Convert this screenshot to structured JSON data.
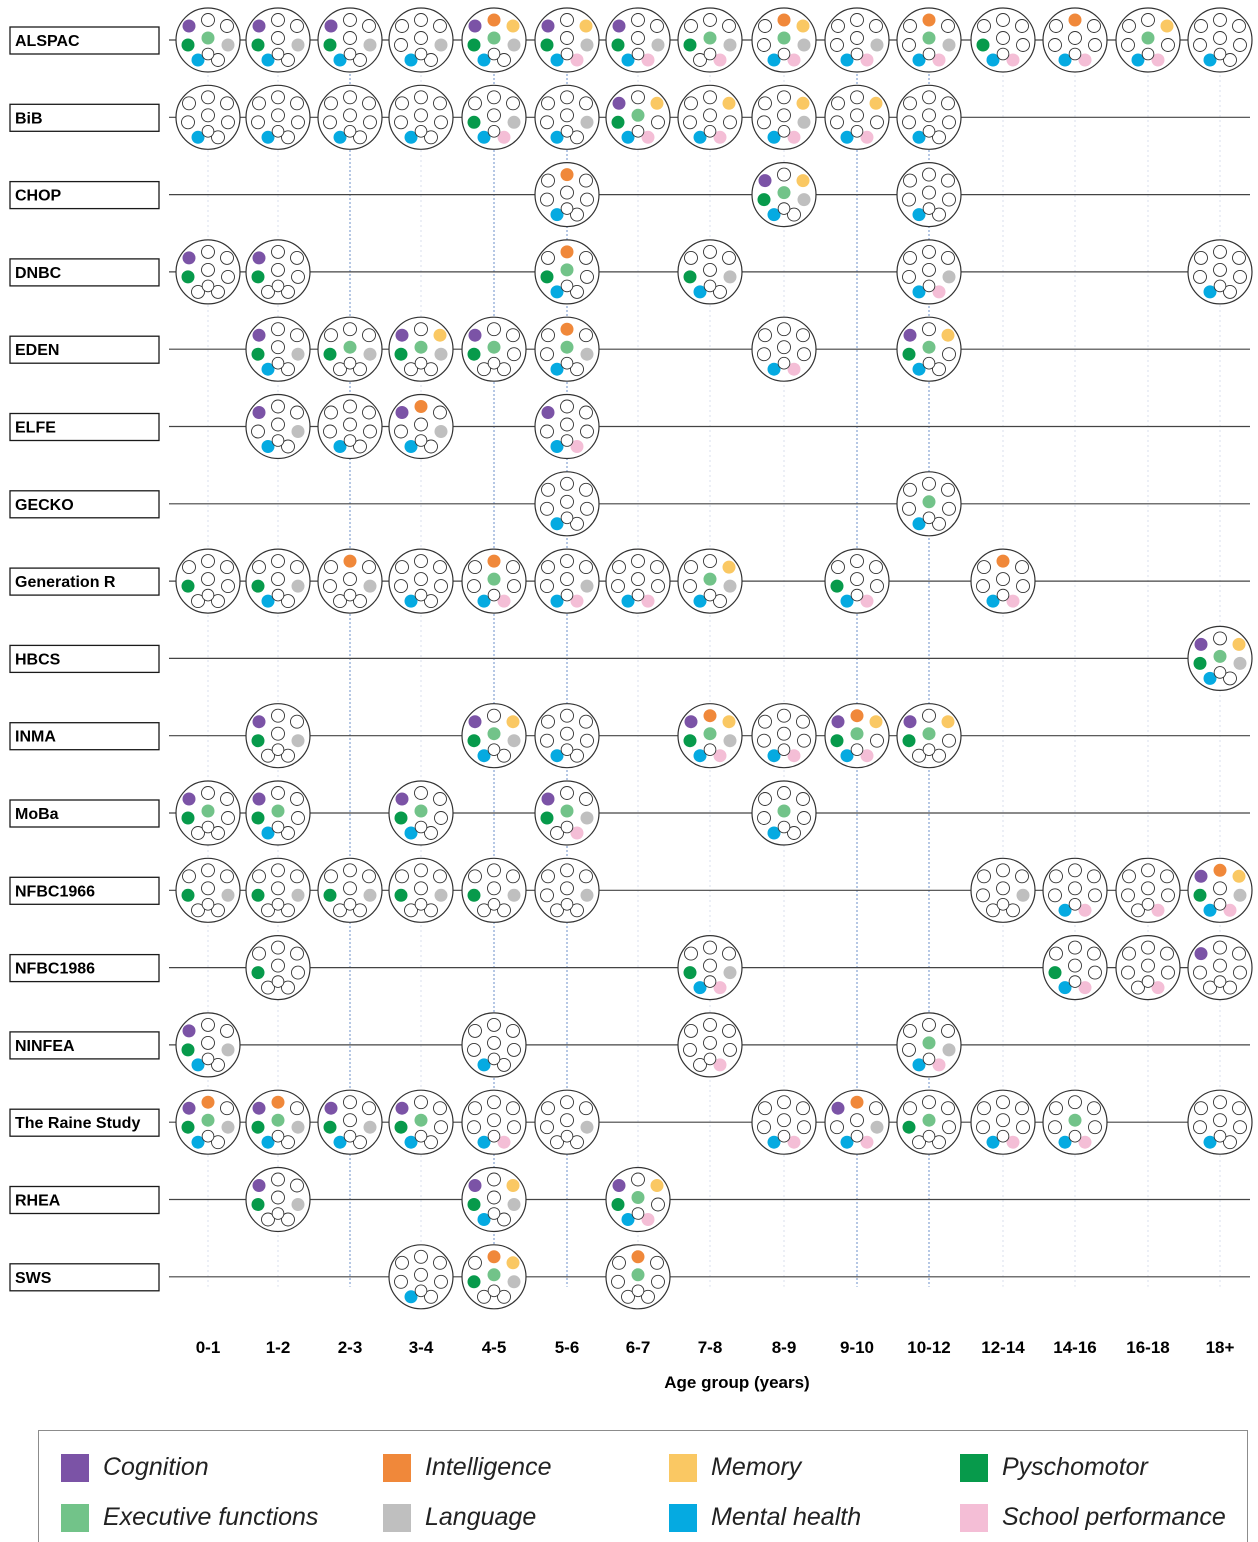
{
  "chart_data": {
    "type": "dot-matrix timeline",
    "xlabel": "Age group (years)",
    "age_groups": [
      "0-1",
      "1-2",
      "2-3",
      "3-4",
      "4-5",
      "5-6",
      "6-7",
      "7-8",
      "8-9",
      "9-10",
      "10-12",
      "12-14",
      "14-16",
      "16-18",
      "18+"
    ],
    "domains": [
      {
        "key": "cog",
        "label": "Cognition",
        "color": "#7b53a6"
      },
      {
        "key": "int",
        "label": "Intelligence",
        "color": "#f0883a"
      },
      {
        "key": "mem",
        "label": "Memory",
        "color": "#fac863"
      },
      {
        "key": "psy",
        "label": "Pyschomotor",
        "color": "#079a4b"
      },
      {
        "key": "exe",
        "label": "Executive functions",
        "color": "#72c389"
      },
      {
        "key": "lan",
        "label": "Language",
        "color": "#bfbfbf"
      },
      {
        "key": "men",
        "label": "Mental health",
        "color": "#05aae1"
      },
      {
        "key": "sch",
        "label": "School performance",
        "color": "#f4bed6"
      }
    ],
    "highlighted_age_groups": [
      "2-3",
      "4-5",
      "5-6",
      "9-10",
      "10-12"
    ],
    "cohorts": [
      {
        "name": "ALSPAC",
        "line_start": "0-1",
        "line_end": "18+",
        "points": {
          "0-1": [
            "cog",
            "psy",
            "exe",
            "lan",
            "men"
          ],
          "1-2": [
            "cog",
            "psy",
            "lan",
            "men"
          ],
          "2-3": [
            "cog",
            "psy",
            "lan",
            "men"
          ],
          "3-4": [
            "lan",
            "men"
          ],
          "4-5": [
            "cog",
            "int",
            "mem",
            "psy",
            "exe",
            "lan",
            "men"
          ],
          "5-6": [
            "cog",
            "mem",
            "psy",
            "lan",
            "men",
            "sch"
          ],
          "6-7": [
            "cog",
            "psy",
            "lan",
            "men",
            "sch"
          ],
          "7-8": [
            "psy",
            "exe",
            "lan",
            "sch"
          ],
          "8-9": [
            "int",
            "mem",
            "exe",
            "lan",
            "men",
            "sch"
          ],
          "9-10": [
            "lan",
            "men",
            "sch"
          ],
          "10-12": [
            "int",
            "exe",
            "lan",
            "men",
            "sch"
          ],
          "12-14": [
            "psy",
            "men",
            "sch"
          ],
          "14-16": [
            "int",
            "men",
            "sch"
          ],
          "16-18": [
            "mem",
            "exe",
            "men",
            "sch"
          ],
          "18+": [
            "men"
          ]
        }
      },
      {
        "name": "BiB",
        "line_start": "0-1",
        "line_end": "18+",
        "points": {
          "0-1": [
            "men"
          ],
          "1-2": [
            "men"
          ],
          "2-3": [
            "men"
          ],
          "3-4": [
            "men"
          ],
          "4-5": [
            "psy",
            "lan",
            "men",
            "sch"
          ],
          "5-6": [
            "lan",
            "men"
          ],
          "6-7": [
            "cog",
            "mem",
            "psy",
            "exe",
            "men",
            "sch"
          ],
          "7-8": [
            "mem",
            "men",
            "sch"
          ],
          "8-9": [
            "mem",
            "lan",
            "men",
            "sch"
          ],
          "9-10": [
            "mem",
            "men",
            "sch"
          ],
          "10-12": [
            "men"
          ]
        }
      },
      {
        "name": "CHOP",
        "line_start": "0-1",
        "line_end": "18+",
        "points": {
          "5-6": [
            "int",
            "men"
          ],
          "8-9": [
            "cog",
            "mem",
            "psy",
            "exe",
            "lan",
            "men"
          ],
          "10-12": [
            "men"
          ]
        }
      },
      {
        "name": "DNBC",
        "line_start": "0-1",
        "line_end": "18+",
        "points": {
          "0-1": [
            "cog",
            "psy"
          ],
          "1-2": [
            "cog",
            "psy"
          ],
          "5-6": [
            "int",
            "psy",
            "exe",
            "men"
          ],
          "7-8": [
            "psy",
            "lan",
            "men"
          ],
          "10-12": [
            "lan",
            "men",
            "sch"
          ],
          "18+": [
            "men"
          ]
        }
      },
      {
        "name": "EDEN",
        "line_start": "0-1",
        "line_end": "18+",
        "points": {
          "1-2": [
            "cog",
            "psy",
            "lan",
            "men"
          ],
          "2-3": [
            "psy",
            "exe",
            "lan"
          ],
          "3-4": [
            "cog",
            "mem",
            "psy",
            "exe",
            "lan"
          ],
          "4-5": [
            "cog",
            "psy",
            "exe"
          ],
          "5-6": [
            "int",
            "exe",
            "lan",
            "men"
          ],
          "8-9": [
            "men",
            "sch"
          ],
          "10-12": [
            "cog",
            "mem",
            "psy",
            "exe",
            "men"
          ]
        }
      },
      {
        "name": "ELFE",
        "line_start": "0-1",
        "line_end": "18+",
        "points": {
          "1-2": [
            "cog",
            "lan",
            "men"
          ],
          "2-3": [
            "men"
          ],
          "3-4": [
            "cog",
            "int",
            "lan",
            "men"
          ],
          "5-6": [
            "cog",
            "men",
            "sch"
          ]
        }
      },
      {
        "name": "GECKO",
        "line_start": "0-1",
        "line_end": "18+",
        "points": {
          "5-6": [
            "men"
          ],
          "10-12": [
            "exe",
            "men"
          ]
        }
      },
      {
        "name": "Generation R",
        "line_start": "0-1",
        "line_end": "18+",
        "points": {
          "0-1": [
            "psy"
          ],
          "1-2": [
            "psy",
            "lan",
            "men"
          ],
          "2-3": [
            "int",
            "lan"
          ],
          "3-4": [
            "men"
          ],
          "4-5": [
            "int",
            "exe",
            "men",
            "sch"
          ],
          "5-6": [
            "lan",
            "men",
            "sch"
          ],
          "6-7": [
            "men",
            "sch"
          ],
          "7-8": [
            "mem",
            "exe",
            "lan",
            "men"
          ],
          "9-10": [
            "psy",
            "men",
            "sch"
          ],
          "12-14": [
            "int",
            "men",
            "sch"
          ]
        }
      },
      {
        "name": "HBCS",
        "line_start": "0-1",
        "line_end": "18+",
        "points": {
          "18+": [
            "cog",
            "mem",
            "psy",
            "exe",
            "lan",
            "men"
          ]
        }
      },
      {
        "name": "INMA",
        "line_start": "0-1",
        "line_end": "18+",
        "points": {
          "1-2": [
            "cog",
            "psy",
            "lan"
          ],
          "4-5": [
            "cog",
            "mem",
            "psy",
            "exe",
            "lan",
            "men"
          ],
          "5-6": [
            "men"
          ],
          "7-8": [
            "cog",
            "int",
            "mem",
            "psy",
            "exe",
            "lan",
            "men",
            "sch"
          ],
          "8-9": [
            "men",
            "sch"
          ],
          "9-10": [
            "cog",
            "int",
            "mem",
            "psy",
            "exe",
            "men",
            "sch"
          ],
          "10-12": [
            "cog",
            "mem",
            "psy",
            "exe"
          ]
        }
      },
      {
        "name": "MoBa",
        "line_start": "0-1",
        "line_end": "18+",
        "points": {
          "0-1": [
            "cog",
            "psy",
            "exe"
          ],
          "1-2": [
            "cog",
            "psy",
            "exe",
            "men"
          ],
          "3-4": [
            "cog",
            "psy",
            "exe",
            "men"
          ],
          "5-6": [
            "cog",
            "psy",
            "exe",
            "lan",
            "sch"
          ],
          "8-9": [
            "exe",
            "men"
          ]
        }
      },
      {
        "name": "NFBC1966",
        "line_start": "0-1",
        "line_end": "18+",
        "points": {
          "0-1": [
            "psy",
            "lan"
          ],
          "1-2": [
            "psy",
            "lan"
          ],
          "2-3": [
            "psy",
            "lan"
          ],
          "3-4": [
            "psy",
            "lan"
          ],
          "4-5": [
            "psy",
            "lan"
          ],
          "5-6": [
            "lan"
          ],
          "12-14": [
            "lan"
          ],
          "14-16": [
            "men",
            "sch"
          ],
          "16-18": [
            "sch"
          ],
          "18+": [
            "cog",
            "int",
            "mem",
            "psy",
            "lan",
            "men",
            "sch"
          ]
        }
      },
      {
        "name": "NFBC1986",
        "line_start": "0-1",
        "line_end": "18+",
        "points": {
          "1-2": [
            "psy"
          ],
          "7-8": [
            "psy",
            "lan",
            "men",
            "sch"
          ],
          "14-16": [
            "psy",
            "men",
            "sch"
          ],
          "16-18": [
            "sch"
          ],
          "18+": [
            "cog"
          ]
        }
      },
      {
        "name": "NINFEA",
        "line_start": "0-1",
        "line_end": "18+",
        "points": {
          "0-1": [
            "cog",
            "psy",
            "lan",
            "men"
          ],
          "4-5": [
            "men"
          ],
          "7-8": [
            "sch"
          ],
          "10-12": [
            "exe",
            "lan",
            "men",
            "sch"
          ]
        }
      },
      {
        "name": "The Raine Study",
        "line_start": "0-1",
        "line_end": "18+",
        "points": {
          "0-1": [
            "cog",
            "int",
            "psy",
            "exe",
            "lan",
            "men"
          ],
          "1-2": [
            "cog",
            "int",
            "psy",
            "exe",
            "lan",
            "men"
          ],
          "2-3": [
            "cog",
            "psy",
            "lan",
            "men"
          ],
          "3-4": [
            "cog",
            "psy",
            "exe",
            "men"
          ],
          "4-5": [
            "men",
            "sch"
          ],
          "5-6": [
            "lan"
          ],
          "8-9": [
            "men",
            "sch"
          ],
          "9-10": [
            "cog",
            "int",
            "lan",
            "men",
            "sch"
          ],
          "10-12": [
            "psy",
            "exe"
          ],
          "12-14": [
            "men",
            "sch"
          ],
          "14-16": [
            "exe",
            "men",
            "sch"
          ],
          "18+": [
            "men"
          ]
        }
      },
      {
        "name": "RHEA",
        "line_start": "0-1",
        "line_end": "18+",
        "points": {
          "1-2": [
            "cog",
            "psy",
            "lan"
          ],
          "4-5": [
            "cog",
            "mem",
            "psy",
            "lan",
            "men"
          ],
          "6-7": [
            "cog",
            "mem",
            "psy",
            "exe",
            "men",
            "sch"
          ]
        }
      },
      {
        "name": "SWS",
        "line_start": "0-1",
        "line_end": "18+",
        "points": {
          "3-4": [
            "men"
          ],
          "4-5": [
            "int",
            "mem",
            "psy",
            "exe",
            "lan"
          ],
          "6-7": [
            "int",
            "exe"
          ]
        }
      }
    ]
  }
}
